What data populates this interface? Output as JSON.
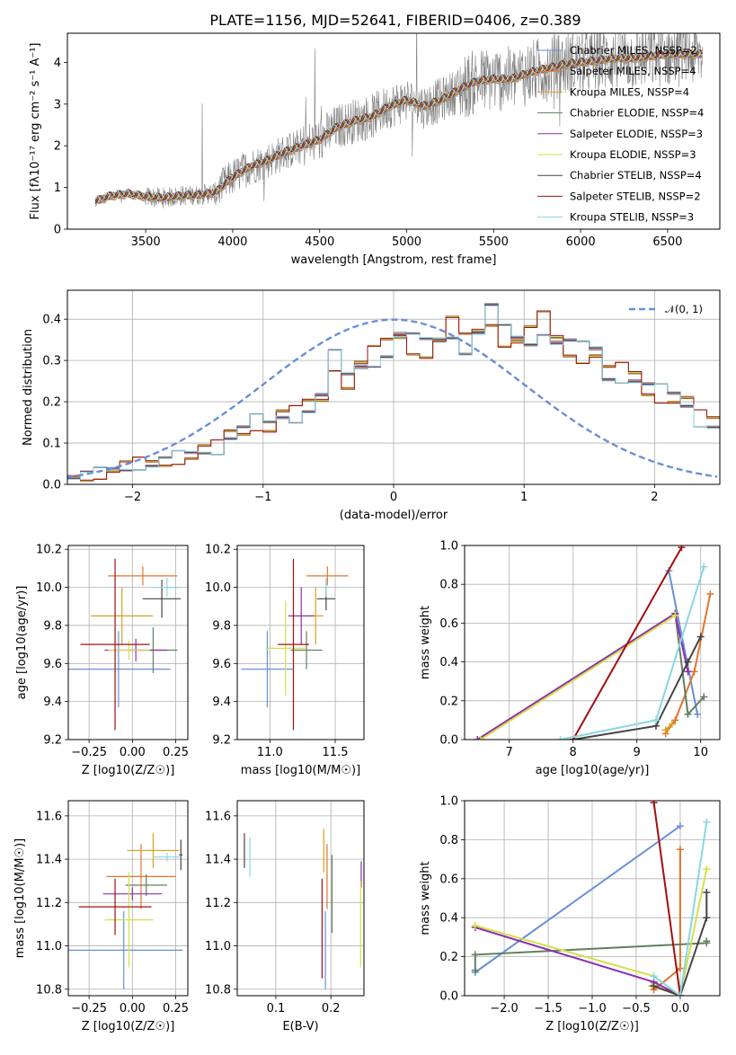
{
  "title": "PLATE=1156, MJD=52641, FIBERID=0406, z=0.389",
  "colors": {
    "Chabrier MILES": "#6a8fd6",
    "Salpeter MILES": "#e0742c",
    "Kroupa MILES": "#d9a020",
    "Chabrier ELODIE": "#5f7f5f",
    "Salpeter ELODIE": "#8e2fae",
    "Kroupa ELODIE": "#d4e04a",
    "Chabrier STELIB": "#444444",
    "Salpeter STELIB": "#a01010",
    "Kroupa STELIB": "#8ad6e0"
  },
  "chart_data": [
    {
      "id": "spectrum",
      "type": "line",
      "xlabel": "wavelength [Angstrom, rest frame]",
      "ylabel": "Flux [f$_\\lambda$10$^{-17}$ erg cm$^{-2}$ s$^{-1}$ A$^{-1}$]",
      "ylabel_display": "Flux [fλ10⁻¹⁷ erg cm⁻² s⁻¹ A⁻¹]",
      "xlim": [
        3050,
        6800
      ],
      "ylim": [
        0,
        4.7
      ],
      "xticks": [
        3500,
        4000,
        4500,
        5000,
        5500,
        6000,
        6500
      ],
      "yticks": [
        0,
        1,
        2,
        3,
        4
      ],
      "grid": false,
      "legend_position": "bottom-right",
      "model_curve": {
        "x": [
          3200,
          3300,
          3400,
          3500,
          3600,
          3700,
          3800,
          3900,
          4000,
          4100,
          4200,
          4300,
          4400,
          4500,
          4600,
          4700,
          4800,
          4900,
          5000,
          5100,
          5200,
          5300,
          5400,
          5500,
          5600,
          5700,
          5800,
          5900,
          6000,
          6100,
          6200,
          6300,
          6400,
          6500,
          6600
        ],
        "y": [
          0.65,
          0.8,
          0.85,
          0.78,
          0.75,
          0.8,
          0.82,
          0.88,
          1.25,
          1.5,
          1.65,
          1.85,
          2.0,
          2.15,
          2.45,
          2.6,
          2.7,
          2.95,
          3.1,
          2.95,
          3.1,
          3.35,
          3.55,
          3.6,
          3.6,
          3.75,
          3.85,
          3.95,
          4.0,
          4.05,
          4.1,
          4.1,
          4.15,
          4.2,
          4.2
        ]
      },
      "series": [
        {
          "name": "Chabrier MILES, N$_{SSP}$=2",
          "label": "Chabrier MILES, NSSP=2"
        },
        {
          "name": "Salpeter MILES, N$_{SSP}$=4",
          "label": "Salpeter MILES, NSSP=4"
        },
        {
          "name": "Kroupa MILES, N$_{SSP}$=4",
          "label": "Kroupa MILES, NSSP=4"
        },
        {
          "name": "Chabrier ELODIE, N$_{SSP}$=4",
          "label": "Chabrier ELODIE, NSSP=4"
        },
        {
          "name": "Salpeter ELODIE, N$_{SSP}$=3",
          "label": "Salpeter ELODIE, NSSP=3"
        },
        {
          "name": "Kroupa ELODIE, N$_{SSP}$=3",
          "label": "Kroupa ELODIE, NSSP=3"
        },
        {
          "name": "Chabrier STELIB, N$_{SSP}$=4",
          "label": "Chabrier STELIB, NSSP=4"
        },
        {
          "name": "Salpeter STELIB, N$_{SSP}$=2",
          "label": "Salpeter STELIB, NSSP=2"
        },
        {
          "name": "Kroupa STELIB, N$_{SSP}$=3",
          "label": "Kroupa STELIB, NSSP=3"
        }
      ]
    },
    {
      "id": "residuals",
      "type": "histogram",
      "xlabel": "(data-model)/error",
      "ylabel": "Normed distribution",
      "xlim": [
        -2.5,
        2.5
      ],
      "ylim": [
        0,
        0.47
      ],
      "xticks": [
        -2,
        -1,
        0,
        1,
        2
      ],
      "yticks": [
        0.0,
        0.1,
        0.2,
        0.3,
        0.4
      ],
      "grid": true,
      "legend_position": "top-right",
      "reference": {
        "name": "N(0,1)",
        "mean": 0,
        "sigma": 1
      },
      "bin_width": 0.1,
      "bin_start": -2.5,
      "base_values": [
        0.017,
        0.02,
        0.027,
        0.035,
        0.045,
        0.05,
        0.05,
        0.055,
        0.065,
        0.07,
        0.085,
        0.09,
        0.12,
        0.13,
        0.15,
        0.14,
        0.17,
        0.17,
        0.19,
        0.21,
        0.3,
        0.25,
        0.29,
        0.31,
        0.33,
        0.36,
        0.34,
        0.33,
        0.35,
        0.38,
        0.34,
        0.37,
        0.41,
        0.36,
        0.35,
        0.36,
        0.39,
        0.35,
        0.33,
        0.32,
        0.32,
        0.27,
        0.27,
        0.26,
        0.23,
        0.22,
        0.21,
        0.2,
        0.16,
        0.15,
        0.13,
        0.12,
        0.1,
        0.1,
        0.09,
        0.08,
        0.07,
        0.065,
        0.05,
        0.04
      ]
    },
    {
      "id": "age_vs_Z",
      "type": "errorbar",
      "xlabel": "Z [log10(Z/Z☉)]",
      "ylabel": "age  [log10(age/yr)]",
      "xlim": [
        -0.37,
        0.32
      ],
      "ylim": [
        9.2,
        10.22
      ],
      "xticks": [
        -0.25,
        0.0,
        0.25
      ],
      "xticklabels": [
        "−0.25",
        "0.00",
        "0.25"
      ],
      "yticks": [
        9.2,
        9.4,
        9.6,
        9.8,
        10.0,
        10.2
      ],
      "grid": true,
      "points": [
        {
          "model": "Chabrier MILES",
          "x": -0.08,
          "xerr": 0.3,
          "y": 9.57,
          "yerr": 0.2
        },
        {
          "model": "Salpeter MILES",
          "x": 0.06,
          "xerr": 0.2,
          "y": 10.06,
          "yerr": 0.05
        },
        {
          "model": "Kroupa MILES",
          "x": -0.06,
          "xerr": 0.18,
          "y": 9.85,
          "yerr": 0.15
        },
        {
          "model": "Chabrier ELODIE",
          "x": 0.12,
          "xerr": 0.14,
          "y": 9.67,
          "yerr": 0.12
        },
        {
          "model": "Salpeter ELODIE",
          "x": 0.02,
          "xerr": 0.18,
          "y": 9.67,
          "yerr": 0.06
        },
        {
          "model": "Kroupa ELODIE",
          "x": -0.02,
          "xerr": 0.12,
          "y": 9.67,
          "yerr": 0.05
        },
        {
          "model": "Chabrier STELIB",
          "x": 0.17,
          "xerr": 0.11,
          "y": 9.94,
          "yerr": 0.1
        },
        {
          "model": "Salpeter STELIB",
          "x": -0.1,
          "xerr": 0.2,
          "y": 9.7,
          "yerr": 0.45
        },
        {
          "model": "Kroupa STELIB",
          "x": 0.2,
          "xerr": 0.08,
          "y": 10.0,
          "yerr": 0.05
        }
      ]
    },
    {
      "id": "age_vs_mass",
      "type": "errorbar",
      "xlabel": "mass [log10(M/M☉)]",
      "ylabel": "",
      "xlim": [
        10.75,
        11.72
      ],
      "ylim": [
        9.2,
        10.22
      ],
      "xticks": [
        11.0,
        11.5
      ],
      "xticklabels": [
        "11.0",
        "11.5"
      ],
      "yticks": [
        9.2,
        9.4,
        9.6,
        9.8,
        10.0,
        10.2
      ],
      "grid": true,
      "points": [
        {
          "model": "Chabrier MILES",
          "x": 10.98,
          "xerr": 0.2,
          "y": 9.57,
          "yerr": 0.2
        },
        {
          "model": "Salpeter MILES",
          "x": 11.44,
          "xerr": 0.16,
          "y": 10.06,
          "yerr": 0.05
        },
        {
          "model": "Kroupa MILES",
          "x": 11.35,
          "xerr": 0.06,
          "y": 9.85,
          "yerr": 0.15
        },
        {
          "model": "Chabrier ELODIE",
          "x": 11.28,
          "xerr": 0.12,
          "y": 9.67,
          "yerr": 0.1
        },
        {
          "model": "Salpeter ELODIE",
          "x": 11.24,
          "xerr": 0.1,
          "y": 9.85,
          "yerr": 0.15
        },
        {
          "model": "Kroupa ELODIE",
          "x": 11.12,
          "xerr": 0.15,
          "y": 9.68,
          "yerr": 0.25
        },
        {
          "model": "Chabrier STELIB",
          "x": 11.43,
          "xerr": 0.07,
          "y": 9.94,
          "yerr": 0.06
        },
        {
          "model": "Salpeter STELIB",
          "x": 11.18,
          "xerr": 0.12,
          "y": 9.7,
          "yerr": 0.45
        },
        {
          "model": "Kroupa STELIB",
          "x": 11.43,
          "xerr": 0.02,
          "y": 10.0,
          "yerr": 0.05
        }
      ]
    },
    {
      "id": "massweight_vs_age",
      "type": "line",
      "xlabel": "age  [log10(age/yr)]",
      "ylabel": "mass weight",
      "xlim": [
        6.3,
        10.3
      ],
      "ylim": [
        0,
        1.0
      ],
      "xticks": [
        7,
        8,
        9,
        10
      ],
      "yticks": [
        0.0,
        0.2,
        0.4,
        0.6,
        0.8,
        1.0
      ],
      "grid": true,
      "series": [
        {
          "model": "Chabrier MILES",
          "x": [
            9.5,
            9.95
          ],
          "y": [
            0.87,
            0.13
          ]
        },
        {
          "model": "Salpeter MILES",
          "x": [
            9.45,
            9.6,
            9.9,
            10.15
          ],
          "y": [
            0.03,
            0.1,
            0.35,
            0.75
          ]
        },
        {
          "model": "Kroupa MILES",
          "x": [
            9.45,
            9.55
          ],
          "y": [
            0.05,
            0.08
          ]
        },
        {
          "model": "Chabrier ELODIE",
          "x": [
            9.6,
            9.8,
            10.05
          ],
          "y": [
            0.65,
            0.13,
            0.22
          ]
        },
        {
          "model": "Salpeter ELODIE",
          "x": [
            6.5,
            9.6,
            9.8
          ],
          "y": [
            0.0,
            0.65,
            0.35
          ]
        },
        {
          "model": "Kroupa ELODIE",
          "x": [
            6.55,
            9.6
          ],
          "y": [
            0.0,
            0.64
          ]
        },
        {
          "model": "Chabrier STELIB",
          "x": [
            8.0,
            9.3,
            9.8,
            10.0
          ],
          "y": [
            0.0,
            0.07,
            0.4,
            0.53
          ]
        },
        {
          "model": "Salpeter STELIB",
          "x": [
            8.0,
            9.7
          ],
          "y": [
            0.0,
            0.99
          ]
        },
        {
          "model": "Kroupa STELIB",
          "x": [
            7.8,
            9.3,
            10.05
          ],
          "y": [
            0.0,
            0.1,
            0.89
          ]
        }
      ]
    },
    {
      "id": "mass_vs_Z",
      "type": "errorbar",
      "xlabel": "Z [log10(Z/Z☉)]",
      "ylabel": "mass [log10(M/M☉)]",
      "xlim": [
        -0.37,
        0.32
      ],
      "ylim": [
        10.77,
        11.67
      ],
      "xticks": [
        -0.25,
        0.0,
        0.25
      ],
      "xticklabels": [
        "−0.25",
        "0.00",
        "0.25"
      ],
      "yticks": [
        10.8,
        11.0,
        11.2,
        11.4,
        11.6
      ],
      "grid": true,
      "points": [
        {
          "model": "Chabrier MILES",
          "x": -0.05,
          "xerr": 0.34,
          "y": 10.98,
          "yerr": 0.18
        },
        {
          "model": "Salpeter MILES",
          "x": 0.05,
          "xerr": 0.2,
          "y": 11.32,
          "yerr": 0.15
        },
        {
          "model": "Kroupa MILES",
          "x": 0.12,
          "xerr": 0.15,
          "y": 11.44,
          "yerr": 0.08
        },
        {
          "model": "Chabrier ELODIE",
          "x": 0.08,
          "xerr": 0.12,
          "y": 11.28,
          "yerr": 0.05
        },
        {
          "model": "Salpeter ELODIE",
          "x": 0.0,
          "xerr": 0.17,
          "y": 11.24,
          "yerr": 0.03
        },
        {
          "model": "Kroupa ELODIE",
          "x": -0.02,
          "xerr": 0.14,
          "y": 11.12,
          "yerr": 0.22
        },
        {
          "model": "Chabrier STELIB",
          "x": 0.28,
          "xerr": 0.01,
          "y": 11.42,
          "yerr": 0.07
        },
        {
          "model": "Salpeter STELIB",
          "x": -0.1,
          "xerr": 0.21,
          "y": 11.18,
          "yerr": 0.13
        },
        {
          "model": "Kroupa STELIB",
          "x": 0.2,
          "xerr": 0.08,
          "y": 11.41,
          "yerr": 0.02
        }
      ]
    },
    {
      "id": "mass_vs_ebv",
      "type": "errorbar",
      "xlabel": "E(B-V)",
      "ylabel": "",
      "xlim": [
        0.03,
        0.26
      ],
      "ylim": [
        10.77,
        11.67
      ],
      "xticks": [
        0.1,
        0.2
      ],
      "xticklabels": [
        "0.1",
        "0.2"
      ],
      "yticks": [
        10.8,
        11.0,
        11.2,
        11.4,
        11.6
      ],
      "grid": true,
      "points": [
        {
          "model": "Chabrier MILES",
          "x": 0.19,
          "xerr": 0.0,
          "y": 10.98,
          "yerr": 0.18
        },
        {
          "model": "Salpeter MILES",
          "x": 0.193,
          "xerr": 0.0,
          "y": 11.32,
          "yerr": 0.15
        },
        {
          "model": "Kroupa MILES",
          "x": 0.187,
          "xerr": 0.0,
          "y": 11.44,
          "yerr": 0.1
        },
        {
          "model": "Chabrier ELODIE",
          "x": 0.202,
          "xerr": 0.0,
          "y": 11.24,
          "yerr": 0.18
        },
        {
          "model": "Salpeter ELODIE",
          "x": 0.255,
          "xerr": 0.0,
          "y": 11.33,
          "yerr": 0.06
        },
        {
          "model": "Kroupa ELODIE",
          "x": 0.254,
          "xerr": 0.0,
          "y": 11.1,
          "yerr": 0.2
        },
        {
          "model": "Chabrier STELIB",
          "x": 0.043,
          "xerr": 0.0,
          "y": 11.44,
          "yerr": 0.08
        },
        {
          "model": "Salpeter STELIB",
          "x": 0.184,
          "xerr": 0.0,
          "y": 11.08,
          "yerr": 0.23
        },
        {
          "model": "Kroupa STELIB",
          "x": 0.053,
          "xerr": 0.0,
          "y": 11.41,
          "yerr": 0.09
        }
      ]
    },
    {
      "id": "massweight_vs_Z",
      "type": "line",
      "xlabel": "Z [log10(Z/Z☉)]",
      "ylabel": "mass weight",
      "xlim": [
        -2.45,
        0.45
      ],
      "ylim": [
        0,
        1.0
      ],
      "xticks": [
        -2.0,
        -1.5,
        -1.0,
        -0.5,
        0.0
      ],
      "xticklabels": [
        "−2.0",
        "−1.5",
        "−1.0",
        "−0.5",
        "0.0"
      ],
      "yticks": [
        0.0,
        0.2,
        0.4,
        0.6,
        0.8,
        1.0
      ],
      "grid": true,
      "series": [
        {
          "model": "Chabrier MILES",
          "x": [
            -2.33,
            0.0
          ],
          "y": [
            0.12,
            0.87
          ]
        },
        {
          "model": "Salpeter MILES",
          "x": [
            -0.3,
            0.0,
            0.0
          ],
          "y": [
            0.03,
            0.14,
            0.75
          ]
        },
        {
          "model": "Kroupa MILES",
          "x": [
            -0.32,
            0.0
          ],
          "y": [
            0.05,
            0.0
          ]
        },
        {
          "model": "Chabrier ELODIE",
          "x": [
            -2.33,
            -2.33,
            0.3,
            0.3
          ],
          "y": [
            0.13,
            0.21,
            0.27,
            0.28
          ]
        },
        {
          "model": "Salpeter ELODIE",
          "x": [
            -2.33,
            -0.3,
            0.0
          ],
          "y": [
            0.35,
            0.07,
            0.0
          ]
        },
        {
          "model": "Kroupa ELODIE",
          "x": [
            -2.33,
            -0.3,
            0.0,
            0.3
          ],
          "y": [
            0.36,
            0.1,
            0.0,
            0.65
          ]
        },
        {
          "model": "Chabrier STELIB",
          "x": [
            -0.3,
            0.0,
            0.3,
            0.3
          ],
          "y": [
            0.05,
            0.0,
            0.4,
            0.53
          ]
        },
        {
          "model": "Salpeter STELIB",
          "x": [
            -0.3,
            0.0
          ],
          "y": [
            0.99,
            0.0
          ]
        },
        {
          "model": "Kroupa STELIB",
          "x": [
            -0.3,
            0.0,
            0.3
          ],
          "y": [
            0.1,
            0.0,
            0.89
          ]
        }
      ]
    }
  ]
}
